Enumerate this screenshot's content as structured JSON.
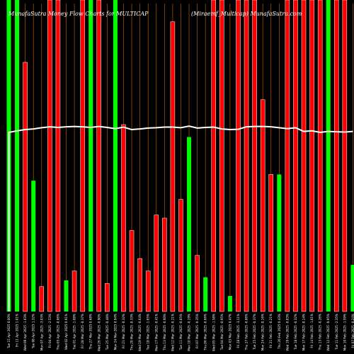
{
  "chart_data": {
    "type": "bar",
    "title": "MunafaSutra Money Flow Charts for MULTICAP",
    "subtitle": "(Miraemf_Multicap) MunafaSutra.com",
    "colors": {
      "up": "#00ff00",
      "down": "#ff0000",
      "line": "#ffffff",
      "grid": "#c86400",
      "background": "#000000"
    },
    "categories": [
      "Tue 15 Apr 2025 0.00%",
      "Fri 11 Apr 2025 1.01%",
      "Wed 09 Apr 2025 -1.03%",
      "Tue 08 Apr 2025 1.32%",
      "Mon 07 Apr 2025 -3.03%",
      "Fri 04 Apr 2025 -2.53%",
      "Thu 03 Apr 2025 -0.06%",
      "Wed 02 Apr 2025 0.91%",
      "Tue 01 Apr 2025 -1.08%",
      "Fri 28 Mar 2025 -0.37%",
      "Thu 27 Mar 2025 0.68%",
      "Wed 26 Mar 2025 -0.90%",
      "Tue 25 Mar 2025 -0.48%",
      "Mon 24 Mar 2025 0.94%",
      "Fri 21 Mar 2025 -0.32%",
      "Thu 20 Mar 2025 -0.33%",
      "Wed 19 Mar 2025 -0.64%",
      "Tue 18 Mar 2025 -1.65%",
      "Mon 17 Mar 2025 -0.41%",
      "Thu 13 Mar 2025 -0.60%",
      "Wed 12 Mar 2025 -0.21%",
      "Tue 11 Mar 2025 -0.05%",
      "Mon 10 Mar 2025 -0.19%",
      "Fri 07 Mar 2025 -0.35%",
      "Thu 06 Mar 2025 -0.66%",
      "Wed 05 Mar 2025 -1.58%",
      "Tue 04 Mar 2025 -0.95%",
      "Mon 03 Mar 2025 0.47%",
      "Fri 28 Feb 2025 -3.11%",
      "Thu 27 Feb 2025 -0.06%",
      "Tue 25 Feb 2025 -0.37%",
      "Mon 24 Feb 2025 -0.16%",
      "Fri 21 Feb 2025 -0.21%",
      "Thu 20 Feb 2025 0.43%",
      "Wed 19 Feb 2025 -0.03%",
      "Tue 18 Feb 2025 -0.32%",
      "Mon 17 Feb 2025 -0.14%",
      "Fri 14 Feb 2025 -1.01%",
      "Thu 13 Feb 2025 -0.26%",
      "Wed 12 Feb 2025 -0.95%",
      "Tue 11 Feb 2025 -2.35%",
      "Mon 10 Feb 2025 -1.59%",
      "Fri 07 Feb 2025 -0.24%"
    ],
    "bar_color": [
      "up",
      "up",
      "down",
      "up",
      "down",
      "down",
      "down",
      "up",
      "down",
      "down",
      "up",
      "down",
      "down",
      "up",
      "down",
      "down",
      "down",
      "down",
      "down",
      "down",
      "down",
      "down",
      "up",
      "down",
      "up",
      "down",
      "down",
      "up",
      "down",
      "down",
      "down",
      "down",
      "down",
      "up",
      "down",
      "down",
      "down",
      "down",
      "down",
      "up",
      "down",
      "down",
      "up"
    ],
    "values": [
      100,
      100,
      80,
      42,
      8,
      100,
      100,
      10,
      13,
      100,
      100,
      100,
      9,
      100,
      60,
      26,
      17,
      13,
      31,
      30,
      93,
      36,
      56,
      18,
      11,
      100,
      100,
      5,
      100,
      100,
      100,
      68,
      44,
      44,
      100,
      100,
      100,
      100,
      100,
      100,
      100,
      100,
      15
    ],
    "line_values": [
      57.5,
      58.0,
      58.4,
      58.6,
      59.0,
      59.3,
      59.1,
      59.3,
      59.4,
      59.3,
      59.1,
      59.4,
      59.1,
      58.7,
      59.2,
      58.4,
      58.6,
      58.9,
      59.0,
      59.2,
      59.2,
      59.0,
      59.5,
      58.9,
      59.1,
      59.2,
      58.6,
      58.4,
      58.5,
      59.3,
      59.4,
      59.4,
      59.3,
      59.0,
      58.7,
      59.0,
      57.8,
      58.0,
      57.5,
      57.8,
      57.7,
      57.6,
      57.8
    ],
    "ylim": [
      0,
      100
    ],
    "grid": true
  }
}
